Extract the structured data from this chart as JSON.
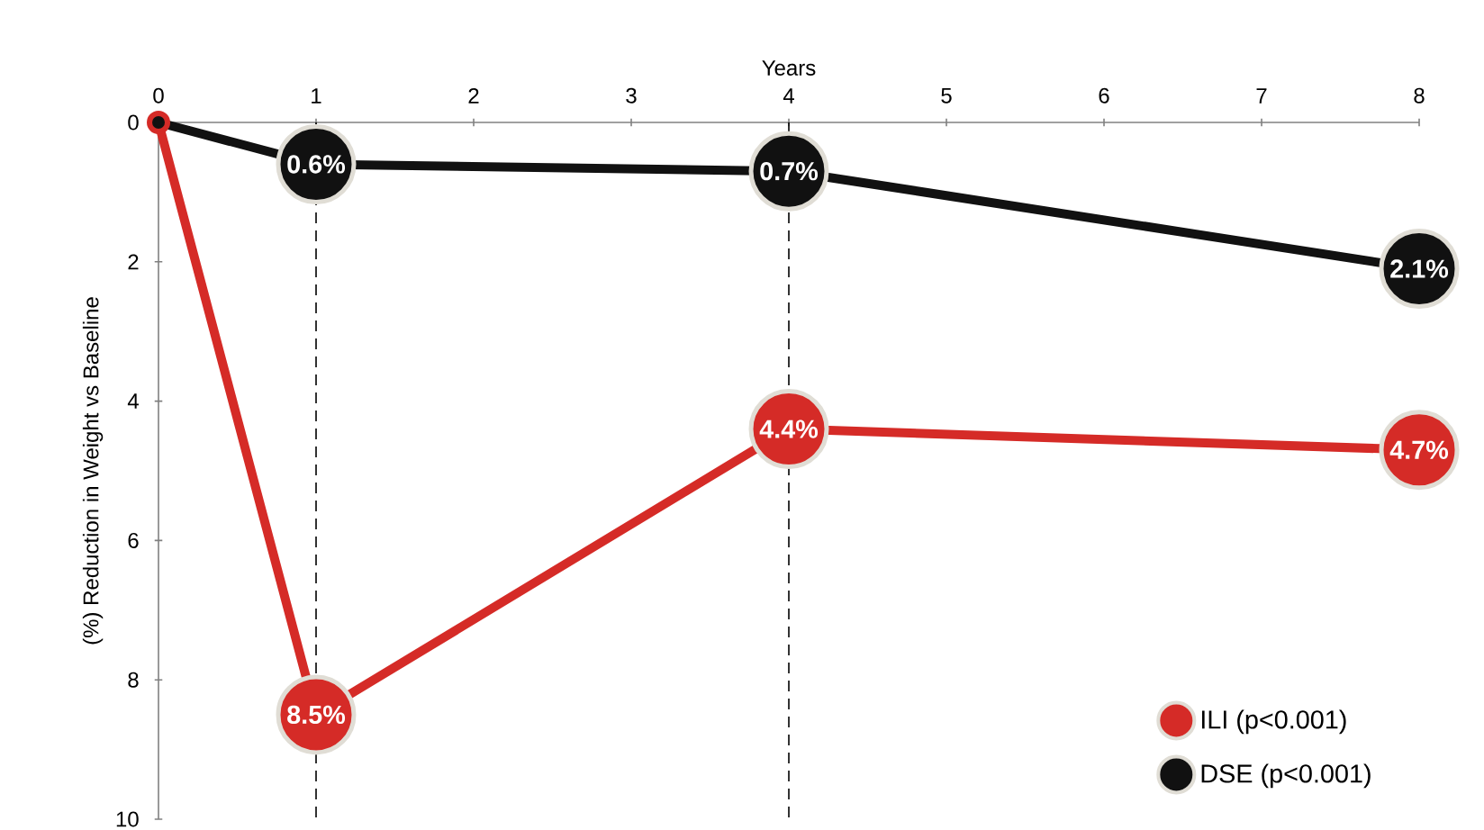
{
  "chart_data": {
    "type": "line",
    "xlabel": "Years",
    "ylabel": "(%) Reduction in Weight vs Baseline",
    "x": [
      0,
      1,
      4,
      8
    ],
    "series": [
      {
        "name": "ILI (p<0.001)",
        "color": "#d52b27",
        "values": [
          0,
          8.5,
          4.4,
          4.7
        ],
        "value_labels": [
          null,
          "8.5%",
          "4.4%",
          "4.7%"
        ]
      },
      {
        "name": "DSE (p<0.001)",
        "color": "#111111",
        "values": [
          0,
          0.6,
          0.7,
          2.1
        ],
        "value_labels": [
          null,
          "0.6%",
          "0.7%",
          "2.1%"
        ]
      }
    ],
    "xlim": [
      0,
      8
    ],
    "xticks": [
      0,
      1,
      2,
      3,
      4,
      5,
      6,
      7,
      8
    ],
    "ylim": [
      10,
      0
    ],
    "yticks": [
      0,
      2,
      4,
      6,
      8,
      10
    ],
    "ref_lines": [
      {
        "axis": "x",
        "value": 1,
        "line_style": "dashed"
      },
      {
        "axis": "x",
        "value": 4,
        "line_style": "dashed"
      }
    ],
    "marker": "circle",
    "line_style": "solid",
    "legend": "bottom right",
    "grid": false
  }
}
